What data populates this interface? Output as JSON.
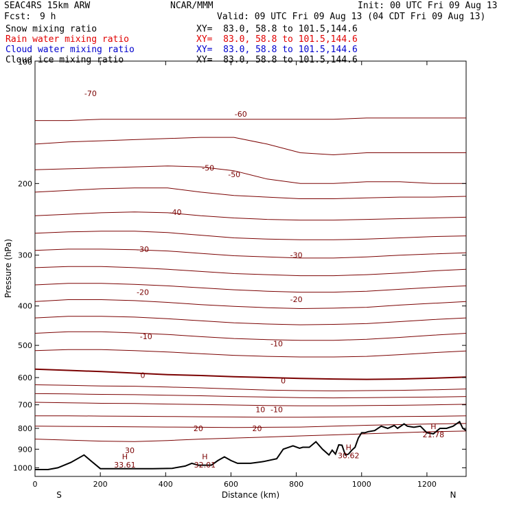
{
  "header": {
    "model": "SEAC4RS 15km ARW",
    "org": "NCAR/MMM",
    "init": "Init: 00 UTC Fri 09 Aug 13",
    "fcst_label": "Fcst:",
    "fcst_value": "9 h",
    "valid": "Valid: 09 UTC Fri 09 Aug 13 (04 CDT Fri 09 Aug 13)"
  },
  "fields": [
    {
      "name": "Snow mixing ratio",
      "xy": "XY=  83.0, 58.8 to 101.5,144.6",
      "color": "#000000"
    },
    {
      "name": "Rain water mixing ratio",
      "xy": "XY=  83.0, 58.8 to 101.5,144.6",
      "color": "#e00000"
    },
    {
      "name": "Cloud water mixing ratio",
      "xy": "XY=  83.0, 58.8 to 101.5,144.6",
      "color": "#0000cc"
    },
    {
      "name": "Cloud ice mixing ratio",
      "xy": "XY=  83.0, 58.8 to 101.5,144.6",
      "color": "#000000"
    }
  ],
  "chart_data": {
    "type": "line",
    "title": "",
    "xlabel": "Distance (km)",
    "ylabel": "Pressure (hPa)",
    "xlim": [
      0,
      1320
    ],
    "ylim": [
      1050,
      100
    ],
    "y_scale": "log",
    "x_ticks": [
      0,
      200,
      400,
      600,
      800,
      1000,
      1200
    ],
    "y_ticks": [
      200,
      300,
      400,
      500,
      600,
      700,
      800,
      900,
      1000
    ],
    "y_tick_label_extra": "100",
    "x_end_labels": {
      "left": "S",
      "right": "N"
    },
    "contour_color": "#7a0000",
    "contour_labels": [
      {
        "text": "-70",
        "x": 170,
        "p": 120
      },
      {
        "text": "-60",
        "x": 630,
        "p": 135
      },
      {
        "text": "-50",
        "x": 530,
        "p": 183
      },
      {
        "text": "-50",
        "x": 610,
        "p": 190
      },
      {
        "text": "-40",
        "x": 430,
        "p": 235
      },
      {
        "text": "-30",
        "x": 330,
        "p": 290
      },
      {
        "text": "-30",
        "x": 800,
        "p": 300
      },
      {
        "text": "-20",
        "x": 330,
        "p": 370
      },
      {
        "text": "-20",
        "x": 800,
        "p": 385
      },
      {
        "text": "-10",
        "x": 340,
        "p": 475
      },
      {
        "text": "-10",
        "x": 740,
        "p": 495
      },
      {
        "text": "0",
        "x": 330,
        "p": 592
      },
      {
        "text": "0",
        "x": 760,
        "p": 610
      },
      {
        "text": "10",
        "x": 690,
        "p": 719
      },
      {
        "text": "-10",
        "x": 740,
        "p": 719
      },
      {
        "text": "20",
        "x": 500,
        "p": 800
      },
      {
        "text": "20",
        "x": 680,
        "p": 800
      },
      {
        "text": "30",
        "x": 290,
        "p": 905
      }
    ],
    "highs": [
      {
        "label": "H",
        "value": "33.61",
        "x": 275,
        "p": 960
      },
      {
        "label": "H",
        "value": "32.01",
        "x": 520,
        "p": 960
      },
      {
        "label": "H",
        "value": "30.62",
        "x": 960,
        "p": 912
      },
      {
        "label": "H",
        "value": "21.78",
        "x": 1220,
        "p": 810
      }
    ],
    "terrain": {
      "x": [
        0,
        40,
        70,
        110,
        150,
        170,
        200,
        250,
        300,
        360,
        420,
        460,
        480,
        500,
        540,
        560,
        580,
        600,
        620,
        660,
        700,
        740,
        760,
        790,
        810,
        820,
        840,
        860,
        880,
        900,
        910,
        920,
        930,
        940,
        950,
        960,
        970,
        980,
        990,
        1000,
        1010,
        1020,
        1040,
        1060,
        1080,
        1100,
        1110,
        1130,
        1140,
        1160,
        1180,
        1200,
        1220,
        1240,
        1260,
        1280,
        1300,
        1310,
        1320
      ],
      "p": [
        1010,
        1010,
        1000,
        970,
        930,
        960,
        1005,
        1005,
        1005,
        1005,
        1003,
        990,
        975,
        985,
        985,
        960,
        940,
        960,
        975,
        975,
        965,
        950,
        900,
        883,
        895,
        890,
        890,
        863,
        900,
        930,
        905,
        925,
        878,
        880,
        930,
        925,
        905,
        890,
        845,
        820,
        820,
        815,
        810,
        790,
        800,
        787,
        800,
        780,
        790,
        795,
        790,
        820,
        825,
        800,
        800,
        790,
        770,
        800,
        810
      ]
    },
    "contours": [
      {
        "level": "-70",
        "p": [
          140,
          140,
          139,
          139,
          139,
          139,
          139,
          139,
          139,
          139,
          138,
          138,
          138,
          138
        ]
      },
      {
        "level": "-60",
        "p": [
          160,
          158,
          157,
          156,
          155,
          154,
          154,
          160,
          168,
          170,
          168,
          168,
          168,
          168
        ]
      },
      {
        "level": "-55",
        "p": [
          185,
          184,
          183,
          182,
          181,
          182,
          186,
          195,
          200,
          200,
          198,
          198,
          200,
          200
        ]
      },
      {
        "level": "-50",
        "p": [
          210,
          208,
          206,
          205,
          205,
          210,
          214,
          216,
          218,
          218,
          217,
          216,
          216,
          215
        ]
      },
      {
        "level": "-45",
        "p": [
          240,
          238,
          236,
          235,
          236,
          240,
          243,
          245,
          246,
          246,
          245,
          244,
          243,
          242
        ]
      },
      {
        "level": "-40",
        "p": [
          265,
          263,
          262,
          262,
          264,
          268,
          272,
          274,
          275,
          275,
          274,
          272,
          270,
          269
        ]
      },
      {
        "level": "-35",
        "p": [
          292,
          290,
          290,
          291,
          293,
          297,
          301,
          303,
          305,
          305,
          303,
          300,
          298,
          296
        ]
      },
      {
        "level": "-30",
        "p": [
          322,
          320,
          320,
          322,
          325,
          329,
          333,
          335,
          337,
          337,
          335,
          332,
          328,
          325
        ]
      },
      {
        "level": "-25",
        "p": [
          355,
          352,
          352,
          354,
          357,
          361,
          365,
          368,
          370,
          370,
          368,
          364,
          360,
          357
        ]
      },
      {
        "level": "-20",
        "p": [
          390,
          386,
          386,
          388,
          392,
          397,
          401,
          404,
          406,
          405,
          403,
          398,
          394,
          390
        ]
      },
      {
        "level": "-15",
        "p": [
          428,
          424,
          424,
          426,
          430,
          435,
          440,
          443,
          445,
          444,
          442,
          437,
          432,
          428
        ]
      },
      {
        "level": "-10",
        "p": [
          467,
          463,
          463,
          466,
          470,
          476,
          481,
          484,
          486,
          486,
          483,
          478,
          472,
          467
        ]
      },
      {
        "level": "-5",
        "p": [
          515,
          512,
          512,
          515,
          519,
          524,
          529,
          532,
          534,
          534,
          532,
          527,
          521,
          516
        ]
      },
      {
        "level": "0",
        "p": [
          572,
          576,
          580,
          585,
          590,
          593,
          597,
          600,
          603,
          605,
          606,
          605,
          602,
          598
        ]
      },
      {
        "level": "5",
        "p": [
          625,
          627,
          629,
          630,
          633,
          636,
          640,
          644,
          646,
          647,
          646,
          645,
          643,
          640
        ]
      },
      {
        "level": "7",
        "p": [
          657,
          658,
          660,
          661,
          663,
          665,
          668,
          670,
          672,
          673,
          672,
          671,
          670,
          668
        ]
      },
      {
        "level": "10",
        "p": [
          690,
          692,
          694,
          695,
          697,
          699,
          701,
          703,
          704,
          704,
          703,
          702,
          700,
          698
        ]
      },
      {
        "level": "15",
        "p": [
          745,
          745,
          746,
          747,
          748,
          749,
          750,
          751,
          751,
          750,
          749,
          748,
          747,
          745
        ]
      },
      {
        "level": "20",
        "p": [
          790,
          791,
          792,
          793,
          794,
          795,
          796,
          795,
          794,
          790,
          786,
          783,
          780,
          778
        ]
      },
      {
        "level": "25",
        "p": [
          850,
          855,
          860,
          862,
          857,
          850,
          845,
          840,
          835,
          830,
          825,
          820,
          815,
          812
        ]
      }
    ]
  }
}
